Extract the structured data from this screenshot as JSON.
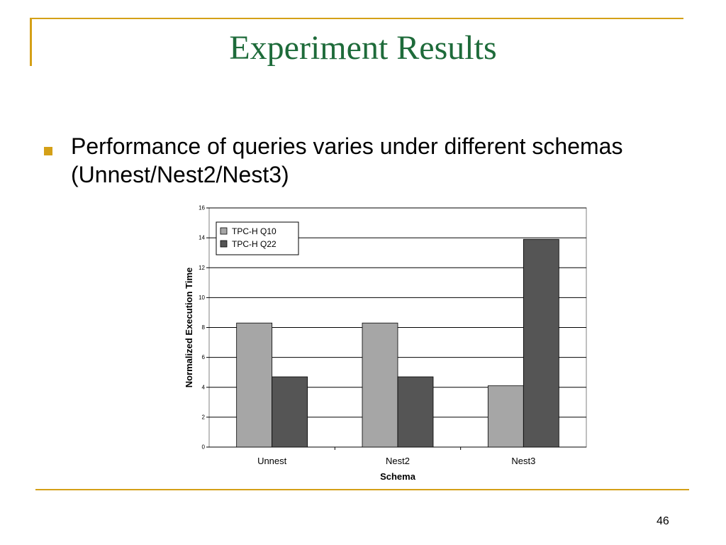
{
  "slide": {
    "title": "Experiment Results",
    "bullet": "Performance of queries varies under different schemas (Unnest/Nest2/Nest3)",
    "page_number": "46",
    "accent_color": "#D4A017",
    "title_color": "#1E6B3A"
  },
  "chart_data": {
    "type": "bar",
    "categories": [
      "Unnest",
      "Nest2",
      "Nest3"
    ],
    "series": [
      {
        "name": "TPC-H Q10",
        "values": [
          8.3,
          8.3,
          4.1
        ],
        "color": "#A6A6A6"
      },
      {
        "name": "TPC-H Q22",
        "values": [
          4.7,
          4.7,
          13.9
        ],
        "color": "#555555"
      }
    ],
    "xlabel": "Schema",
    "ylabel": "Normalized Execution Time",
    "ylim": [
      0,
      16
    ],
    "yticks": [
      0,
      2,
      4,
      6,
      8,
      10,
      12,
      14,
      16
    ],
    "grid": true,
    "legend_position": "top-left"
  }
}
